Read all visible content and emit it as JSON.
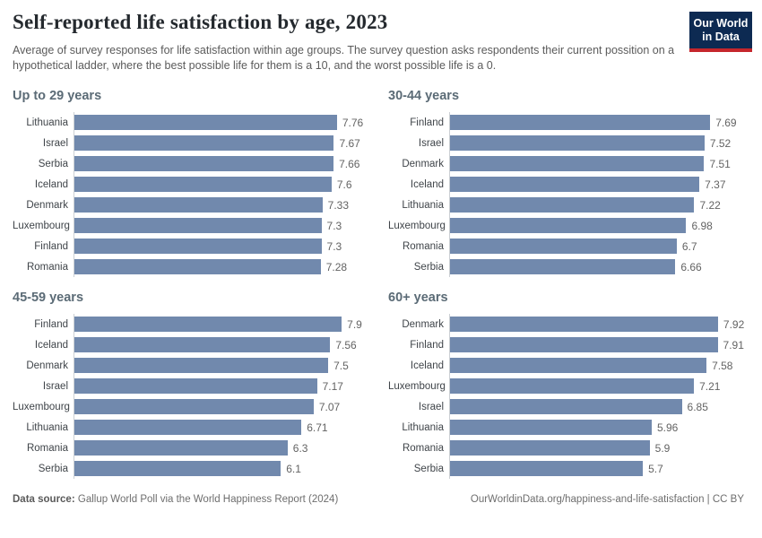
{
  "header": {
    "title": "Self-reported life satisfaction by age, 2023",
    "subtitle": "Average of survey responses for life satisfaction within age groups. The survey question asks respondents their current possition on a hypothetical ladder, where the best possible life for them is a 10, and the worst possible life is a 0.",
    "logo_line1": "Our World",
    "logo_line2": "in Data"
  },
  "chart_data": [
    {
      "type": "bar",
      "orientation": "horizontal",
      "title": "Up to 29 years",
      "categories": [
        "Lithuania",
        "Israel",
        "Serbia",
        "Iceland",
        "Denmark",
        "Luxembourg",
        "Finland",
        "Romania"
      ],
      "values": [
        7.76,
        7.67,
        7.66,
        7.6,
        7.33,
        7.3,
        7.3,
        7.28
      ],
      "xlim": [
        0,
        9
      ],
      "grid": false,
      "value_labels": true
    },
    {
      "type": "bar",
      "orientation": "horizontal",
      "title": "30-44 years",
      "categories": [
        "Finland",
        "Israel",
        "Denmark",
        "Iceland",
        "Lithuania",
        "Luxembourg",
        "Romania",
        "Serbia"
      ],
      "values": [
        7.69,
        7.52,
        7.51,
        7.37,
        7.22,
        6.98,
        6.7,
        6.66
      ],
      "xlim": [
        0,
        9
      ],
      "grid": false,
      "value_labels": true
    },
    {
      "type": "bar",
      "orientation": "horizontal",
      "title": "45-59 years",
      "categories": [
        "Finland",
        "Iceland",
        "Denmark",
        "Israel",
        "Luxembourg",
        "Lithuania",
        "Romania",
        "Serbia"
      ],
      "values": [
        7.9,
        7.56,
        7.5,
        7.17,
        7.07,
        6.71,
        6.3,
        6.1
      ],
      "xlim": [
        0,
        9
      ],
      "grid": false,
      "value_labels": true
    },
    {
      "type": "bar",
      "orientation": "horizontal",
      "title": "60+ years",
      "categories": [
        "Denmark",
        "Finland",
        "Iceland",
        "Luxembourg",
        "Israel",
        "Lithuania",
        "Romania",
        "Serbia"
      ],
      "values": [
        7.92,
        7.91,
        7.58,
        7.21,
        6.85,
        5.96,
        5.9,
        5.7
      ],
      "xlim": [
        0,
        9
      ],
      "grid": false,
      "value_labels": true
    }
  ],
  "footer": {
    "source_label": "Data source:",
    "source_text": "Gallup World Poll via the World Happiness Report (2024)",
    "url_text": "OurWorldinData.org/happiness-and-life-satisfaction | CC BY"
  },
  "colors": {
    "bar": "#7189ad",
    "logo_background": "#0d2a52",
    "logo_stripe": "#c5262c",
    "title_text": "#24292e",
    "panel_title_text": "#5b6b76"
  }
}
